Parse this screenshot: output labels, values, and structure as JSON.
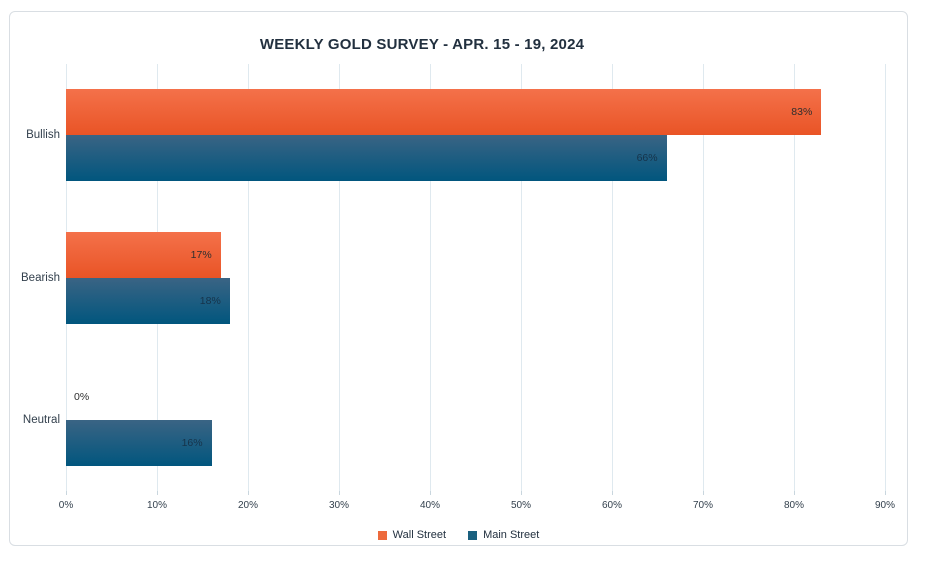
{
  "chart_data": {
    "type": "bar",
    "orientation": "horizontal",
    "title": "WEEKLY GOLD SURVEY - APR. 15 - 19, 2024",
    "categories": [
      "Bullish",
      "Bearish",
      "Neutral"
    ],
    "series": [
      {
        "name": "Wall Street",
        "values": [
          83,
          17,
          0
        ],
        "color": "#ED6A3C",
        "gradient_top": "#F4714A",
        "gradient_bottom": "#E95426",
        "label_color": "#2e2e2e"
      },
      {
        "name": "Main Street",
        "values": [
          66,
          18,
          16
        ],
        "color": "#1A607F",
        "gradient_top": "#3A6484",
        "gradient_bottom": "#01567E",
        "label_color": "#16334a"
      }
    ],
    "value_suffix": "%",
    "data_labels": "inside-end",
    "x_ticks": [
      "0%",
      "10%",
      "20%",
      "30%",
      "40%",
      "50%",
      "60%",
      "70%",
      "80%",
      "90%"
    ],
    "xlim": [
      0,
      90
    ],
    "xlabel": "",
    "ylabel": "",
    "grid": "vertical-only",
    "legend_position": "bottom-center"
  },
  "colors": {
    "title_text": "#22303f",
    "axis_text": "#33404d",
    "gridline": "#dfe9ef",
    "card_border": "#d9dee3",
    "background": "#ffffff"
  }
}
